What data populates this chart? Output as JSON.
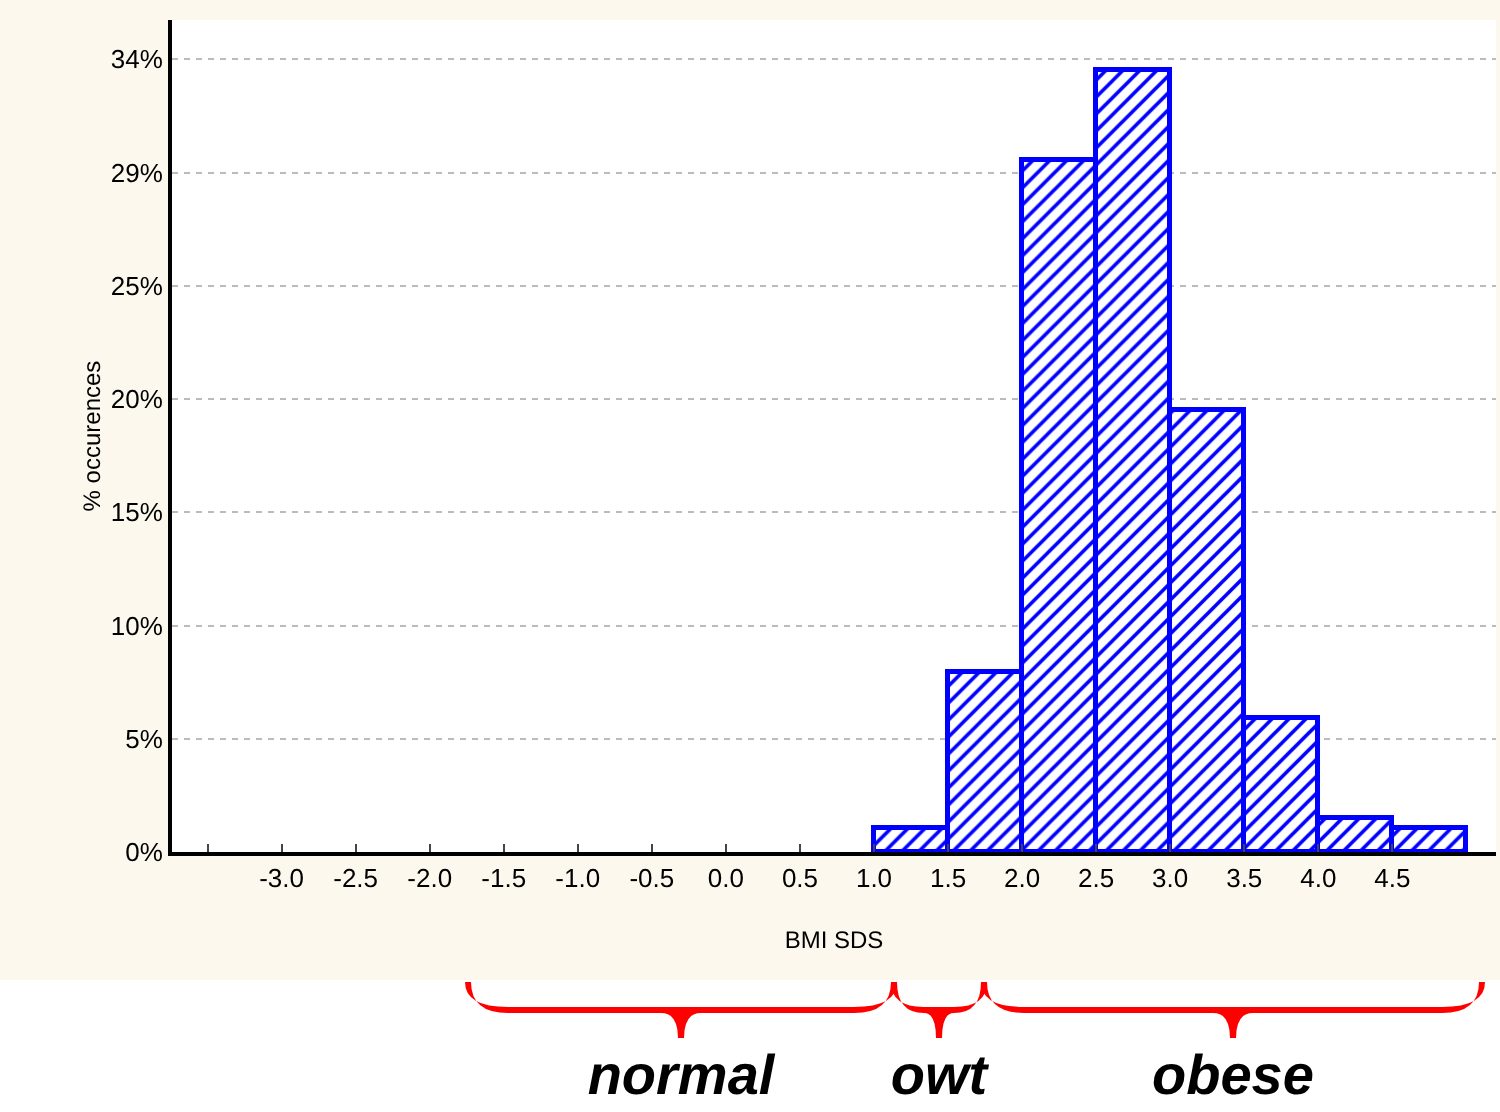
{
  "chart_data": {
    "type": "histogram",
    "xlabel": "BMI SDS",
    "ylabel": "% occurences",
    "bins": [
      1.0,
      1.5,
      2.0,
      2.5,
      3.0,
      3.5,
      4.0,
      4.5,
      5.0
    ],
    "values": [
      1.0,
      7.8,
      29.9,
      33.8,
      19.1,
      5.8,
      1.5,
      1.0
    ],
    "color": "#0000ff",
    "xlim": [
      -3.74,
      5.2
    ],
    "xticks": [
      {
        "value": -3.5,
        "label": null
      },
      {
        "value": -3,
        "label": "-3.0"
      },
      {
        "value": -2.5,
        "label": "-2.5"
      },
      {
        "value": -2,
        "label": "-2.0"
      },
      {
        "value": -1.5,
        "label": "-1.5"
      },
      {
        "value": -1,
        "label": "-1.0"
      },
      {
        "value": -0.5,
        "label": "-0.5"
      },
      {
        "value": 0,
        "label": "0.0"
      },
      {
        "value": 0.5,
        "label": "0.5"
      },
      {
        "value": 1,
        "label": "1.0"
      },
      {
        "value": 1.5,
        "label": "1.5"
      },
      {
        "value": 2,
        "label": "2.0"
      },
      {
        "value": 2.5,
        "label": "2.5"
      },
      {
        "value": 3,
        "label": "3.0"
      },
      {
        "value": 3.5,
        "label": "3.5"
      },
      {
        "value": 4,
        "label": "4.0"
      },
      {
        "value": 4.5,
        "label": "4.5"
      }
    ],
    "ylim": [
      0,
      36
    ],
    "yticks": [
      {
        "value": 0,
        "label": "0%"
      },
      {
        "value": 4.9,
        "label": "5%"
      },
      {
        "value": 9.8,
        "label": "10%"
      },
      {
        "value": 14.7,
        "label": "15%"
      },
      {
        "value": 19.6,
        "label": "20%"
      },
      {
        "value": 24.5,
        "label": "25%"
      },
      {
        "value": 29.4,
        "label": "29%"
      },
      {
        "value": 34.3,
        "label": "34%"
      }
    ],
    "grid": "y",
    "annotations": [
      "normal",
      "owt",
      "obese"
    ]
  }
}
